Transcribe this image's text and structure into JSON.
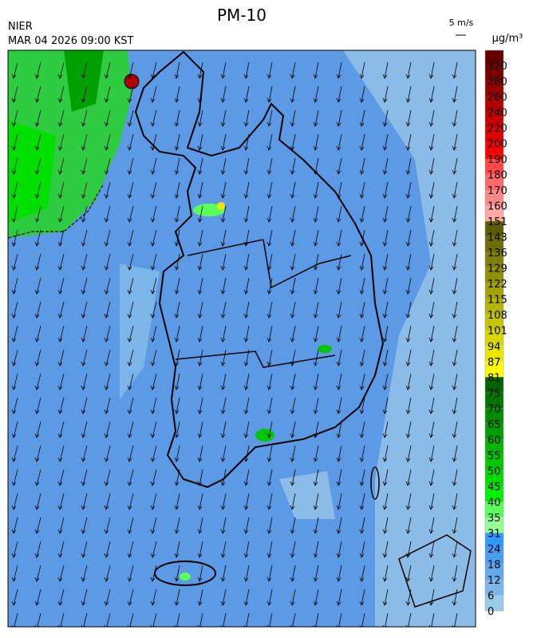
{
  "header": {
    "title": "PM-10",
    "agency": "NIER",
    "datetime": "MAR 04 2026 09:00 KST",
    "wind_scale": "5 m/s"
  },
  "legend": {
    "unit": "μg/m³",
    "ticks": [
      320,
      280,
      260,
      240,
      220,
      200,
      190,
      180,
      170,
      160,
      151,
      143,
      136,
      129,
      122,
      115,
      108,
      101,
      94,
      87,
      81,
      75,
      70,
      65,
      60,
      55,
      50,
      45,
      40,
      35,
      31,
      24,
      18,
      12,
      6,
      0
    ],
    "colors": [
      "#660000",
      "#7a0000",
      "#950000",
      "#b00000",
      "#c80000",
      "#e00000",
      "#ff0000",
      "#ff4848",
      "#ff6a6a",
      "#ff8888",
      "#ffa8a8",
      "#5c5c00",
      "#6e6e00",
      "#808000",
      "#919100",
      "#a3a300",
      "#b5b500",
      "#c6c600",
      "#d8d800",
      "#e9e900",
      "#ffff00",
      "#006400",
      "#007800",
      "#008c00",
      "#00a000",
      "#00b400",
      "#00c800",
      "#00dc00",
      "#00f000",
      "#5aff5a",
      "#96ff96",
      "#3399ff",
      "#4a9ef0",
      "#64a8ec",
      "#7cb6e8",
      "#9accea"
    ]
  }
}
